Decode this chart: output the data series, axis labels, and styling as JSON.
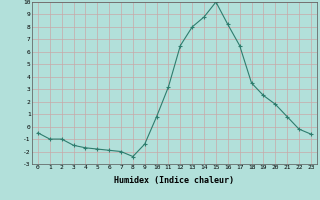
{
  "x": [
    0,
    1,
    2,
    3,
    4,
    5,
    6,
    7,
    8,
    9,
    10,
    11,
    12,
    13,
    14,
    15,
    16,
    17,
    18,
    19,
    20,
    21,
    22,
    23
  ],
  "y": [
    -0.5,
    -1.0,
    -1.0,
    -1.5,
    -1.7,
    -1.8,
    -1.9,
    -2.0,
    -2.4,
    -1.4,
    0.8,
    3.2,
    6.5,
    8.0,
    8.8,
    10.0,
    8.2,
    6.5,
    3.5,
    2.5,
    1.8,
    0.8,
    -0.2,
    -0.6
  ],
  "xlabel": "Humidex (Indice chaleur)",
  "xlim": [
    -0.5,
    23.5
  ],
  "ylim": [
    -3,
    10
  ],
  "yticks": [
    -3,
    -2,
    -1,
    0,
    1,
    2,
    3,
    4,
    5,
    6,
    7,
    8,
    9,
    10
  ],
  "xticks": [
    0,
    1,
    2,
    3,
    4,
    5,
    6,
    7,
    8,
    9,
    10,
    11,
    12,
    13,
    14,
    15,
    16,
    17,
    18,
    19,
    20,
    21,
    22,
    23
  ],
  "line_color": "#2e7d6e",
  "marker": "+",
  "bg_color": "#b2e0da",
  "grid_color": "#c8a8a8",
  "fig_bg": "#b2e0da"
}
